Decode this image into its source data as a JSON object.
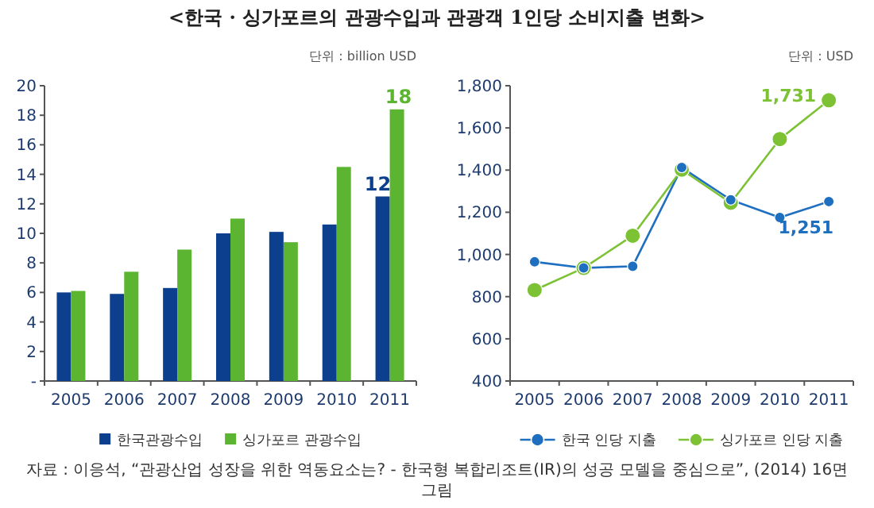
{
  "chart_data": [
    {
      "type": "bar",
      "title": "<한국 · 싱가포르의 관광수입과 관광객 1인당 소비지출 변화>",
      "categories": [
        "2005",
        "2006",
        "2007",
        "2008",
        "2009",
        "2010",
        "2011"
      ],
      "series": [
        {
          "name": "한국관광수입",
          "color": "#0d3f8f",
          "values": [
            6.0,
            5.9,
            6.3,
            10.0,
            10.1,
            10.6,
            12.5
          ],
          "value_labels": [
            null,
            null,
            null,
            null,
            null,
            null,
            "12"
          ]
        },
        {
          "name": "싱가포르 관광수입",
          "color": "#5cb531",
          "values": [
            6.1,
            7.4,
            8.9,
            11.0,
            9.4,
            14.5,
            18.4
          ],
          "value_labels": [
            null,
            null,
            null,
            null,
            null,
            null,
            "18"
          ]
        }
      ],
      "ylim": [
        0,
        20
      ],
      "yticks": [
        {
          "value": 0,
          "label": "-"
        },
        2,
        4,
        6,
        8,
        10,
        12,
        14,
        16,
        18,
        20
      ],
      "grid": false,
      "legend": "bottom",
      "annotations": [
        "단위 : billion USD"
      ]
    },
    {
      "type": "line",
      "categories": [
        "2005",
        "2006",
        "2007",
        "2008",
        "2009",
        "2010",
        "2011"
      ],
      "series": [
        {
          "name": "한국 인당 지출",
          "color": "#1f6fc0",
          "values": [
            965,
            936,
            944,
            1412,
            1259,
            1175,
            1251
          ],
          "value_labels": [
            null,
            null,
            null,
            null,
            null,
            null,
            "1,251"
          ]
        },
        {
          "name": "싱가포르 인당 지출",
          "color": "#7cc234",
          "values": [
            831,
            936,
            1089,
            1402,
            1245,
            1547,
            1731
          ],
          "value_labels": [
            null,
            null,
            null,
            null,
            null,
            null,
            "1,731"
          ]
        }
      ],
      "ylim": [
        400,
        1800
      ],
      "yticks": [
        400,
        600,
        800,
        {
          "value": 1000,
          "label": "1,000"
        },
        {
          "value": 1200,
          "label": "1,200"
        },
        {
          "value": 1400,
          "label": "1,400"
        },
        {
          "value": 1600,
          "label": "1,600"
        },
        {
          "value": 1800,
          "label": "1,800"
        }
      ],
      "grid": false,
      "legend": "bottom",
      "marker": "circle",
      "annotations": [
        "단위 : USD",
        "자료 : 이응석, “관광산업 성장을 위한 역동요소는? - 한국형 복합리조트(IR)의 성공 모델을 중심으로”, (2014) 16면 그림"
      ]
    }
  ]
}
